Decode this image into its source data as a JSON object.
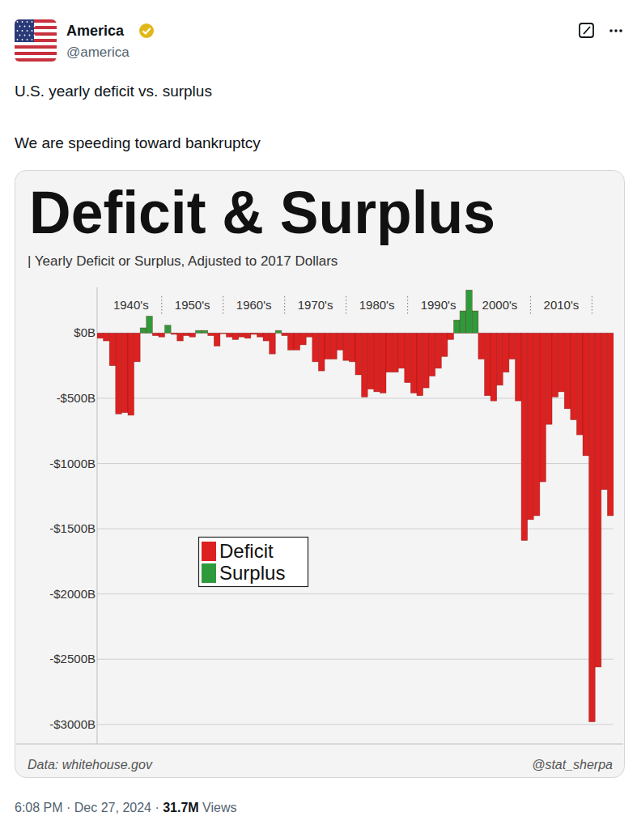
{
  "account": {
    "name": "America",
    "handle": "@america"
  },
  "tweet": {
    "lines": [
      "U.S. yearly deficit vs. surplus",
      "We are speeding toward bankruptcy"
    ]
  },
  "footer": {
    "time": "6:08 PM · Dec 27, 2024",
    "separator": "·",
    "views": "31.7M",
    "views_label": "Views"
  },
  "chart_data": {
    "type": "bar",
    "title": "Deficit & Surplus",
    "subtitle": "| Yearly Deficit or Surplus, Adjusted to 2017 Dollars",
    "source": "Data: whitehouse.gov",
    "credit": "@stat_sherpa",
    "x": [
      1940,
      1941,
      1942,
      1943,
      1944,
      1945,
      1946,
      1947,
      1948,
      1949,
      1950,
      1951,
      1952,
      1953,
      1954,
      1955,
      1956,
      1957,
      1958,
      1959,
      1960,
      1961,
      1962,
      1963,
      1964,
      1965,
      1966,
      1967,
      1968,
      1969,
      1970,
      1971,
      1972,
      1973,
      1974,
      1975,
      1976,
      1977,
      1978,
      1979,
      1980,
      1981,
      1982,
      1983,
      1984,
      1985,
      1986,
      1987,
      1988,
      1989,
      1990,
      1991,
      1992,
      1993,
      1994,
      1995,
      1996,
      1997,
      1998,
      1999,
      2000,
      2001,
      2002,
      2003,
      2004,
      2005,
      2006,
      2007,
      2008,
      2009,
      2010,
      2011,
      2012,
      2013,
      2014,
      2015,
      2016,
      2017,
      2018,
      2019,
      2020,
      2021,
      2022,
      2023
    ],
    "series": [
      {
        "name": "Deficit",
        "color": "#dc2121",
        "values": [
          -40,
          -60,
          -250,
          -620,
          -610,
          -630,
          -220,
          null,
          null,
          -20,
          -30,
          null,
          -10,
          -60,
          -20,
          -30,
          null,
          null,
          -20,
          -100,
          -5,
          -30,
          -50,
          -30,
          -40,
          -10,
          -30,
          -60,
          -160,
          null,
          -20,
          -130,
          -130,
          -90,
          -30,
          -220,
          -290,
          -200,
          -200,
          -130,
          -210,
          -220,
          -320,
          -490,
          -430,
          -450,
          -460,
          -300,
          -300,
          -270,
          -380,
          -460,
          -480,
          -420,
          -330,
          -270,
          -180,
          -50,
          null,
          null,
          null,
          null,
          -200,
          -480,
          -520,
          -400,
          -300,
          -200,
          -520,
          -1590,
          -1430,
          -1400,
          -1140,
          -700,
          -490,
          -450,
          -580,
          -665,
          -780,
          -940,
          -2980,
          -2560,
          -1200,
          -1400
        ]
      },
      {
        "name": "Surplus",
        "color": "#2f9a3b",
        "values": [
          null,
          null,
          null,
          null,
          null,
          null,
          null,
          40,
          130,
          null,
          null,
          60,
          null,
          null,
          null,
          null,
          20,
          20,
          null,
          null,
          null,
          null,
          null,
          null,
          null,
          null,
          null,
          null,
          null,
          20,
          null,
          null,
          null,
          null,
          null,
          null,
          null,
          null,
          null,
          null,
          null,
          null,
          null,
          null,
          null,
          null,
          null,
          null,
          null,
          null,
          null,
          null,
          null,
          null,
          null,
          null,
          null,
          null,
          100,
          170,
          330,
          170,
          null,
          null,
          null,
          null,
          null,
          null,
          null,
          null,
          null,
          null,
          null,
          null,
          null,
          null,
          null,
          null,
          null,
          null,
          null,
          null,
          null,
          null
        ]
      }
    ],
    "xlim": [
      1939.5,
      2023.5
    ],
    "xticks": [
      {
        "value": 1945,
        "label": "1940's"
      },
      {
        "value": 1955,
        "label": "1950's"
      },
      {
        "value": 1965,
        "label": "1960's"
      },
      {
        "value": 1975,
        "label": "1970's"
      },
      {
        "value": 1985,
        "label": "1980's"
      },
      {
        "value": 1995,
        "label": "1990's"
      },
      {
        "value": 2005,
        "label": "2000's"
      },
      {
        "value": 2015,
        "label": "2010's"
      }
    ],
    "ylim": [
      -3150,
      350
    ],
    "yticks": [
      {
        "value": 0,
        "label": "$0B"
      },
      {
        "value": -500,
        "label": "-$500B"
      },
      {
        "value": -1000,
        "label": "-$1000B"
      },
      {
        "value": -1500,
        "label": "-$1500B"
      },
      {
        "value": -2000,
        "label": "-$2000B"
      },
      {
        "value": -2500,
        "label": "-$2500B"
      },
      {
        "value": -3000,
        "label": "-$3000B"
      }
    ],
    "grid": true,
    "legend": "lower left"
  }
}
